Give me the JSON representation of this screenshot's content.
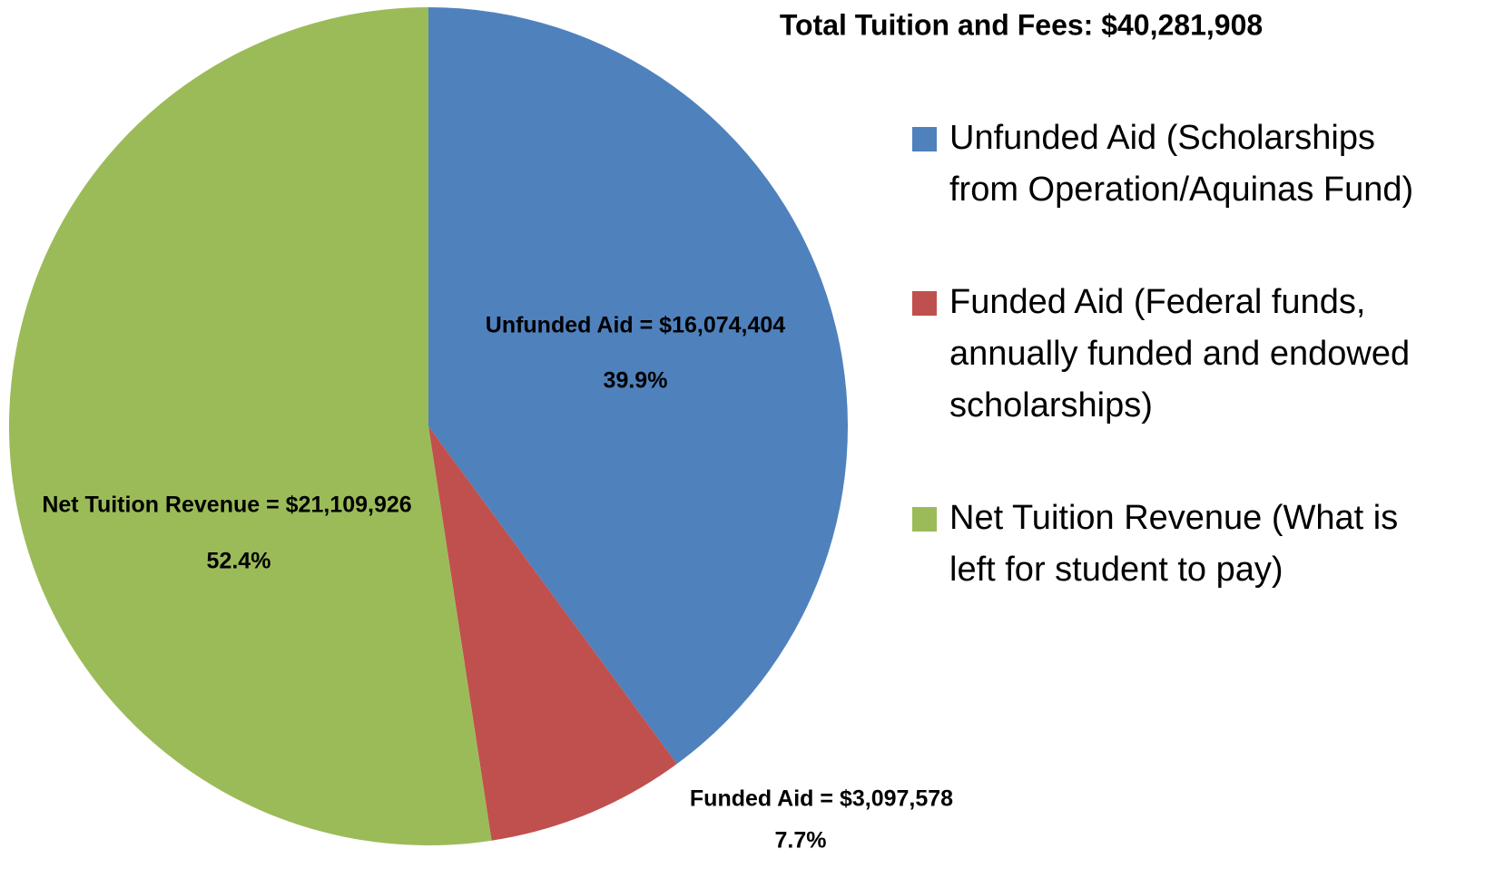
{
  "chart_data": {
    "type": "pie",
    "title": "Total Tuition and Fees:  $40,281,908",
    "categories": [
      "Unfunded Aid (Scholarships from Operation/Aquinas Fund)",
      "Funded Aid (Federal funds, annually funded and endowed scholarships)",
      "Net Tuition Revenue (What is left for student to pay)"
    ],
    "values": [
      16074404,
      3097578,
      21109926
    ],
    "value_labels": [
      "Unfunded Aid = $16,074,404",
      "Funded Aid = $3,097,578",
      "Net Tuition Revenue = $21,109,926"
    ],
    "percents": [
      39.9,
      7.7,
      52.4
    ],
    "percent_labels": [
      "39.9%",
      "7.7%",
      "52.4%"
    ],
    "colors": [
      "#4f81bd",
      "#c0504d",
      "#9bbb59"
    ],
    "legend": "right"
  }
}
